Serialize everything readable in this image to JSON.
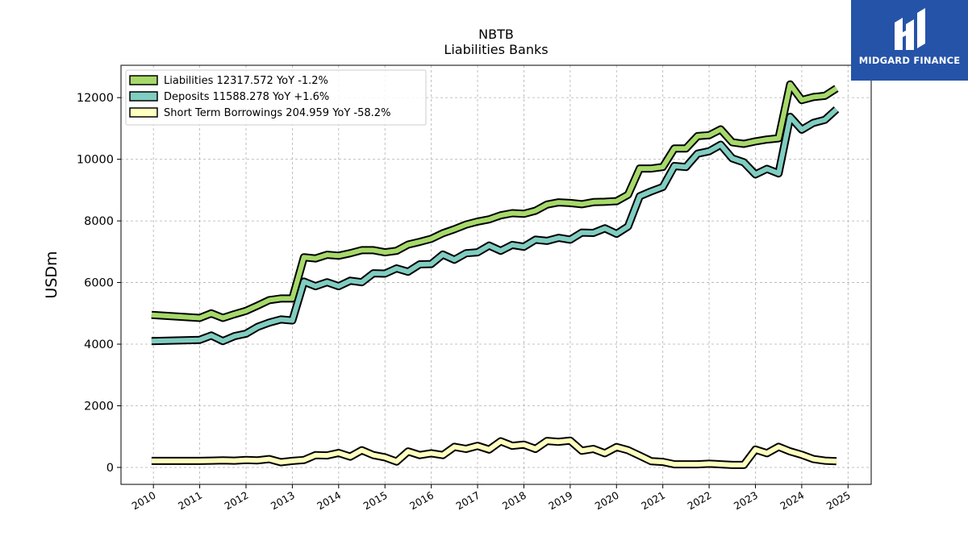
{
  "brand": {
    "name": "MIDGARD FINANCE",
    "color": "#2553a8"
  },
  "chart_data": {
    "type": "line",
    "title": "NBTB",
    "subtitle": "Liabilities Banks",
    "xlabel": "",
    "ylabel": "USDm",
    "xlim": [
      2009.3,
      2025.5
    ],
    "ylim": [
      -550,
      13050
    ],
    "x_ticks": [
      "2010",
      "2011",
      "2012",
      "2013",
      "2014",
      "2015",
      "2016",
      "2017",
      "2018",
      "2019",
      "2020",
      "2021",
      "2022",
      "2023",
      "2024",
      "2025"
    ],
    "y_ticks": [
      0,
      2000,
      4000,
      6000,
      8000,
      10000,
      12000
    ],
    "grid": true,
    "legend_position": "top-left",
    "x": [
      2009.96,
      2011.0,
      2011.25,
      2011.5,
      2011.75,
      2012.0,
      2012.25,
      2012.5,
      2012.75,
      2013.0,
      2013.25,
      2013.5,
      2013.75,
      2014.0,
      2014.25,
      2014.5,
      2014.75,
      2015.0,
      2015.25,
      2015.5,
      2015.75,
      2016.0,
      2016.25,
      2016.5,
      2016.75,
      2017.0,
      2017.25,
      2017.5,
      2017.75,
      2018.0,
      2018.25,
      2018.5,
      2018.75,
      2019.0,
      2019.25,
      2019.5,
      2019.75,
      2020.0,
      2020.25,
      2020.5,
      2020.75,
      2021.0,
      2021.25,
      2021.5,
      2021.75,
      2022.0,
      2022.25,
      2022.5,
      2022.75,
      2023.0,
      2023.25,
      2023.5,
      2023.75,
      2024.0,
      2024.25,
      2024.5,
      2024.75
    ],
    "series": [
      {
        "name": "Liabilities",
        "legend": "Liabilities  12317.572 YoY -1.2%",
        "color": "#a6d96a",
        "values": [
          4950,
          4850,
          5000,
          4850,
          4970,
          5080,
          5250,
          5430,
          5480,
          5480,
          6820,
          6780,
          6900,
          6870,
          6950,
          7050,
          7050,
          6980,
          7030,
          7230,
          7320,
          7420,
          7600,
          7730,
          7880,
          7980,
          8050,
          8180,
          8250,
          8230,
          8330,
          8530,
          8600,
          8580,
          8540,
          8610,
          8620,
          8640,
          8850,
          9700,
          9700,
          9750,
          10350,
          10350,
          10750,
          10780,
          10970,
          10550,
          10500,
          10580,
          10640,
          10680,
          12430,
          11920,
          12020,
          12060,
          12300
        ]
      },
      {
        "name": "Deposits",
        "legend": "Deposits  11588.278 YoY +1.6%",
        "color": "#80cdc1",
        "values": [
          4100,
          4140,
          4280,
          4100,
          4260,
          4340,
          4560,
          4700,
          4800,
          4770,
          6030,
          5880,
          6010,
          5880,
          6060,
          6010,
          6300,
          6290,
          6460,
          6350,
          6590,
          6600,
          6910,
          6740,
          6950,
          6980,
          7200,
          7030,
          7220,
          7160,
          7390,
          7350,
          7450,
          7390,
          7620,
          7610,
          7760,
          7580,
          7820,
          8800,
          8960,
          9100,
          9780,
          9750,
          10180,
          10260,
          10470,
          10030,
          9900,
          9510,
          9690,
          9540,
          11380,
          10960,
          11180,
          11280,
          11620
        ]
      },
      {
        "name": "Short Term Borrowings",
        "legend": "Short Term Borrowings  204.959 YoY -58.2%",
        "color": "#ffffbf",
        "values": [
          210,
          210,
          220,
          230,
          220,
          240,
          230,
          270,
          170,
          210,
          240,
          400,
          390,
          470,
          350,
          560,
          400,
          330,
          190,
          520,
          400,
          460,
          400,
          670,
          600,
          700,
          580,
          850,
          700,
          740,
          600,
          860,
          830,
          870,
          540,
          600,
          460,
          660,
          560,
          380,
          200,
          180,
          100,
          100,
          100,
          120,
          100,
          80,
          80,
          580,
          460,
          670,
          520,
          410,
          270,
          220,
          200
        ]
      }
    ]
  }
}
